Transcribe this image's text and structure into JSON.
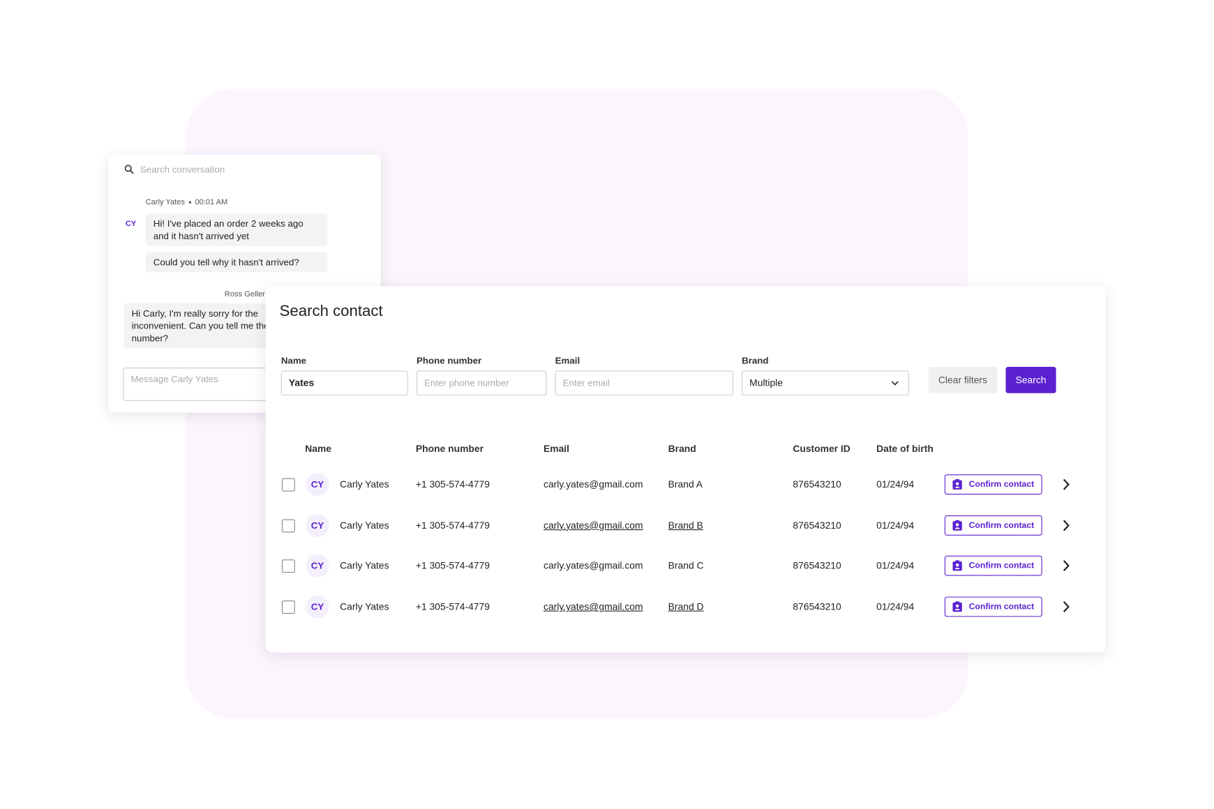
{
  "chat": {
    "search_placeholder": "Search conversation",
    "incoming": {
      "sender": "Carly Yates",
      "time": "00:01 AM",
      "avatar": "CY",
      "bubbles": [
        "Hi! I've placed an order 2 weeks ago and it hasn't arrived yet",
        "Could you tell why it hasn't arrived?"
      ]
    },
    "outgoing": {
      "sender": "Ross Geller",
      "bubbles": [
        "Hi Carly, I'm really sorry for the inconvenient. Can you tell me the order number?"
      ]
    },
    "input_placeholder": "Message Carly Yates"
  },
  "search": {
    "title": "Search contact",
    "fields": [
      {
        "label": "Name",
        "value": "Yates"
      },
      {
        "label": "Phone number",
        "placeholder": "Enter phone number"
      },
      {
        "label": "Email",
        "placeholder": "Enter email"
      },
      {
        "label": "Brand",
        "value": "Multiple"
      }
    ],
    "clear_button": "Clear filters",
    "search_button": "Search",
    "table": {
      "columns": [
        "Name",
        "Phone number",
        "Email",
        "Brand",
        "Customer ID",
        "Date of birth"
      ],
      "rows": [
        {
          "initials": "CY",
          "name": "Carly Yates",
          "phone": "+1 305-574-4779",
          "email": "carly.yates@gmail.com",
          "brand": "Brand A",
          "customer_id": "876543210",
          "dob": "01/24/94",
          "action": "Confirm contact",
          "linked": false
        },
        {
          "initials": "CY",
          "name": "Carly Yates",
          "phone": "+1 305-574-4779",
          "email": "carly.yates@gmail.com",
          "brand": "Brand B",
          "customer_id": "876543210",
          "dob": "01/24/94",
          "action": "Confirm contact",
          "linked": true
        },
        {
          "initials": "CY",
          "name": "Carly Yates",
          "phone": "+1 305-574-4779",
          "email": "carly.yates@gmail.com",
          "brand": "Brand C",
          "customer_id": "876543210",
          "dob": "01/24/94",
          "action": "Confirm contact",
          "linked": false
        },
        {
          "initials": "CY",
          "name": "Carly Yates",
          "phone": "+1 305-574-4779",
          "email": "carly.yates@gmail.com",
          "brand": "Brand D",
          "customer_id": "876543210",
          "dob": "01/24/94",
          "action": "Confirm contact",
          "linked": true
        }
      ]
    }
  }
}
